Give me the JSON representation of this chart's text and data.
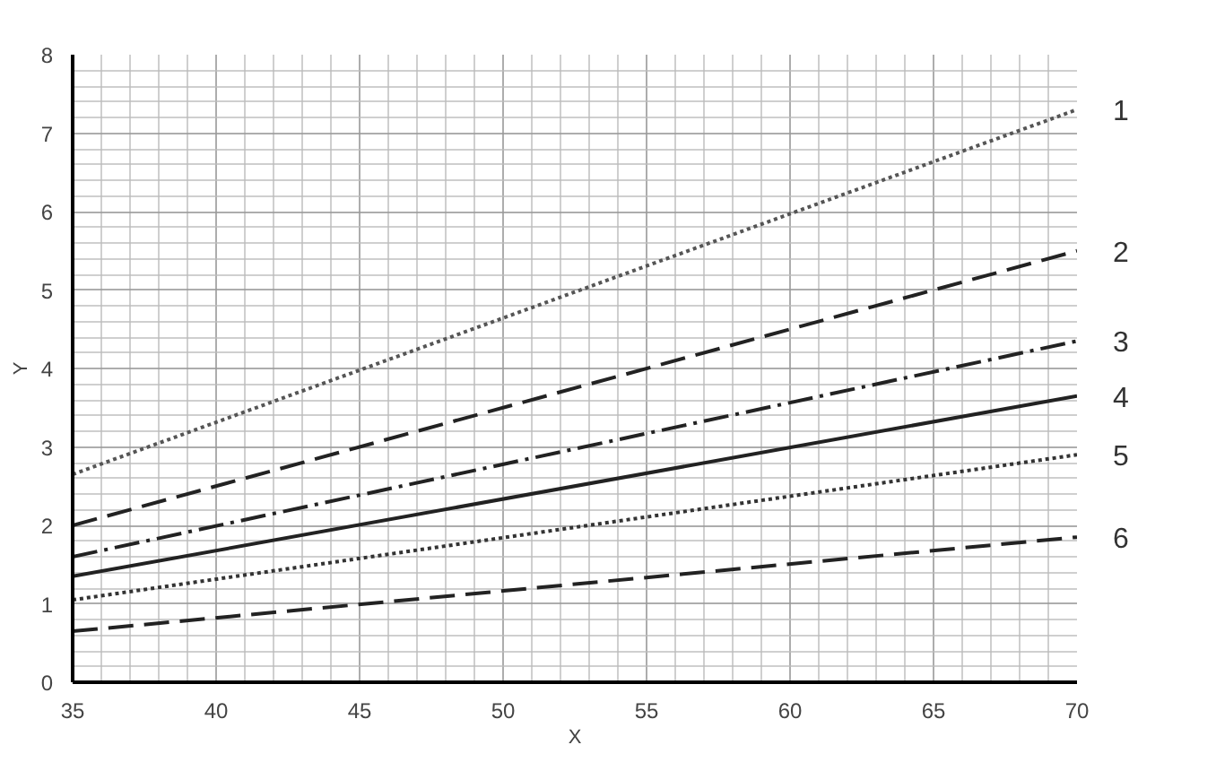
{
  "chart_data": {
    "type": "line",
    "xlabel": "X",
    "ylabel": "Y",
    "x": [
      35,
      70
    ],
    "series": [
      {
        "name": "1",
        "color": "#555555",
        "values": [
          2.65,
          7.3
        ],
        "line_style": "dotted"
      },
      {
        "name": "2",
        "color": "#222222",
        "values": [
          2.0,
          5.5
        ],
        "line_style": "dashed"
      },
      {
        "name": "3",
        "color": "#222222",
        "values": [
          1.6,
          4.35
        ],
        "line_style": "dashdot"
      },
      {
        "name": "4",
        "color": "#222222",
        "values": [
          1.35,
          3.65
        ],
        "line_style": "solid"
      },
      {
        "name": "5",
        "color": "#333333",
        "values": [
          1.05,
          2.9
        ],
        "line_style": "dotted"
      },
      {
        "name": "6",
        "color": "#222222",
        "values": [
          0.65,
          1.85
        ],
        "line_style": "dashed"
      }
    ],
    "xlim": [
      35,
      70
    ],
    "ylim": [
      0,
      8
    ],
    "xticks": [
      35,
      40,
      45,
      50,
      55,
      60,
      65,
      70
    ],
    "yticks": [
      0,
      1,
      2,
      3,
      4,
      5,
      6,
      7,
      8
    ],
    "grid": true
  }
}
